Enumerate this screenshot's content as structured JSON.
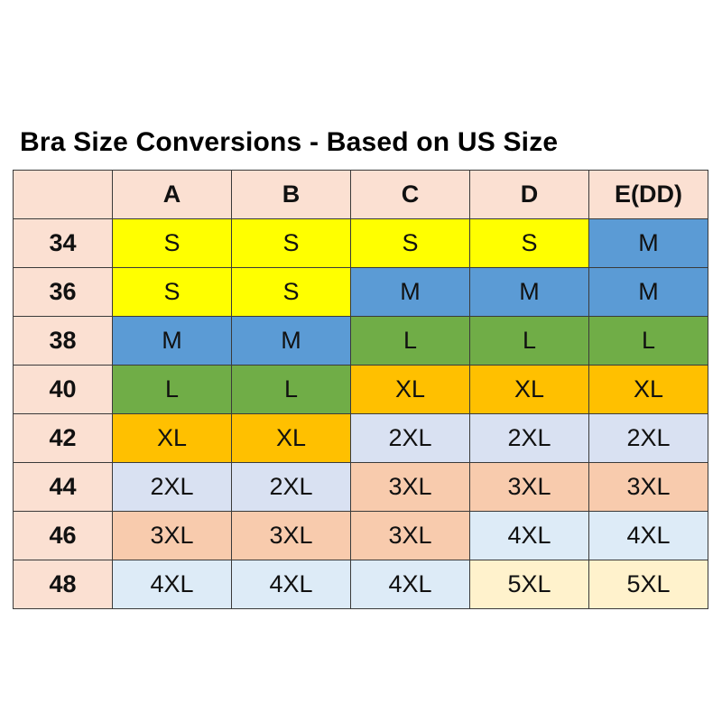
{
  "title": "Bra Size Conversions - Based on US Size",
  "columns": [
    "",
    "A",
    "B",
    "C",
    "D",
    "E(DD)"
  ],
  "rows": [
    {
      "band": "34",
      "sizes": [
        "S",
        "S",
        "S",
        "S",
        "M"
      ]
    },
    {
      "band": "36",
      "sizes": [
        "S",
        "S",
        "M",
        "M",
        "M"
      ]
    },
    {
      "band": "38",
      "sizes": [
        "M",
        "M",
        "L",
        "L",
        "L"
      ]
    },
    {
      "band": "40",
      "sizes": [
        "L",
        "L",
        "XL",
        "XL",
        "XL"
      ]
    },
    {
      "band": "42",
      "sizes": [
        "XL",
        "XL",
        "2XL",
        "2XL",
        "2XL"
      ]
    },
    {
      "band": "44",
      "sizes": [
        "2XL",
        "2XL",
        "3XL",
        "3XL",
        "3XL"
      ]
    },
    {
      "band": "46",
      "sizes": [
        "3XL",
        "3XL",
        "3XL",
        "4XL",
        "4XL"
      ]
    },
    {
      "band": "48",
      "sizes": [
        "4XL",
        "4XL",
        "4XL",
        "5XL",
        "5XL"
      ]
    }
  ],
  "colors": {
    "header": "#fbe0d2",
    "S": "#ffff00",
    "M": "#5b9bd5",
    "L": "#70ad47",
    "XL": "#ffc000",
    "2XL": "#d9e1f2",
    "3XL": "#f8cbad",
    "4XL": "#ddebf7",
    "5XL": "#fff2cc"
  }
}
